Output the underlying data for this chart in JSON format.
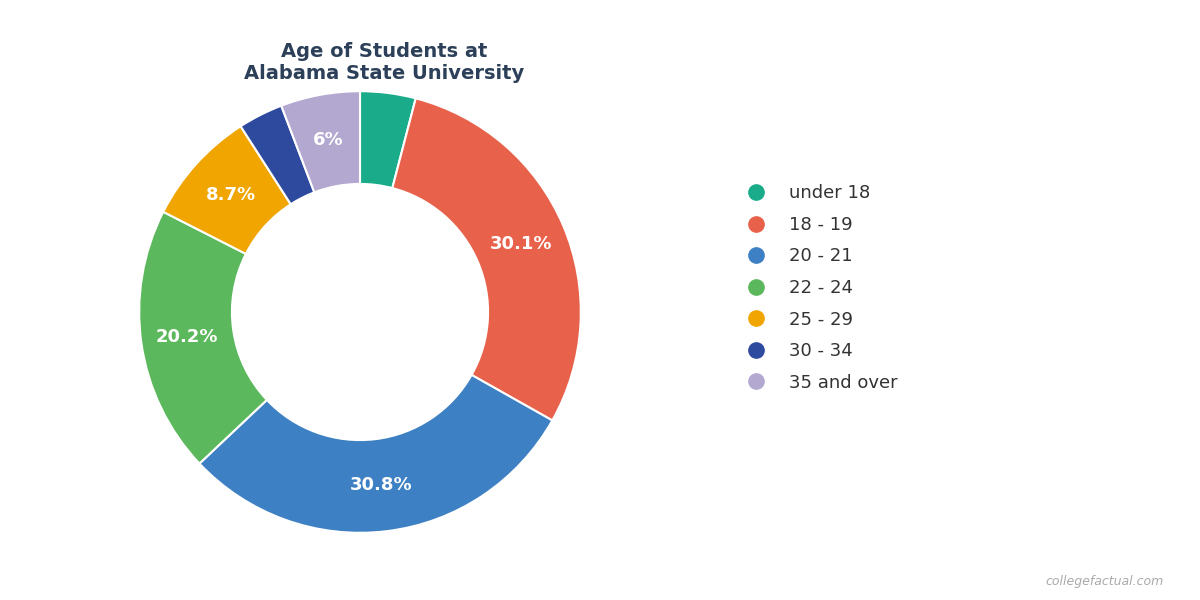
{
  "title": "Age of Students at\nAlabama State University",
  "title_color": "#2d4059",
  "labels": [
    "under 18",
    "18 - 19",
    "20 - 21",
    "22 - 24",
    "25 - 29",
    "30 - 34",
    "35 and over"
  ],
  "values": [
    4.2,
    30.1,
    30.8,
    20.2,
    8.7,
    3.4,
    6.0
  ],
  "pct_labels": [
    "",
    "30.1%",
    "30.8%",
    "20.2%",
    "8.7%",
    "",
    "6%"
  ],
  "colors": [
    "#1aab8a",
    "#e8614a",
    "#3d80c3",
    "#5cb85c",
    "#f0a500",
    "#2d4a9e",
    "#b3a8d0"
  ],
  "background_color": "#ffffff",
  "legend_fontsize": 13,
  "title_fontsize": 14,
  "label_fontsize": 13,
  "watermark": "collegefactual.com",
  "donut_width": 0.42
}
